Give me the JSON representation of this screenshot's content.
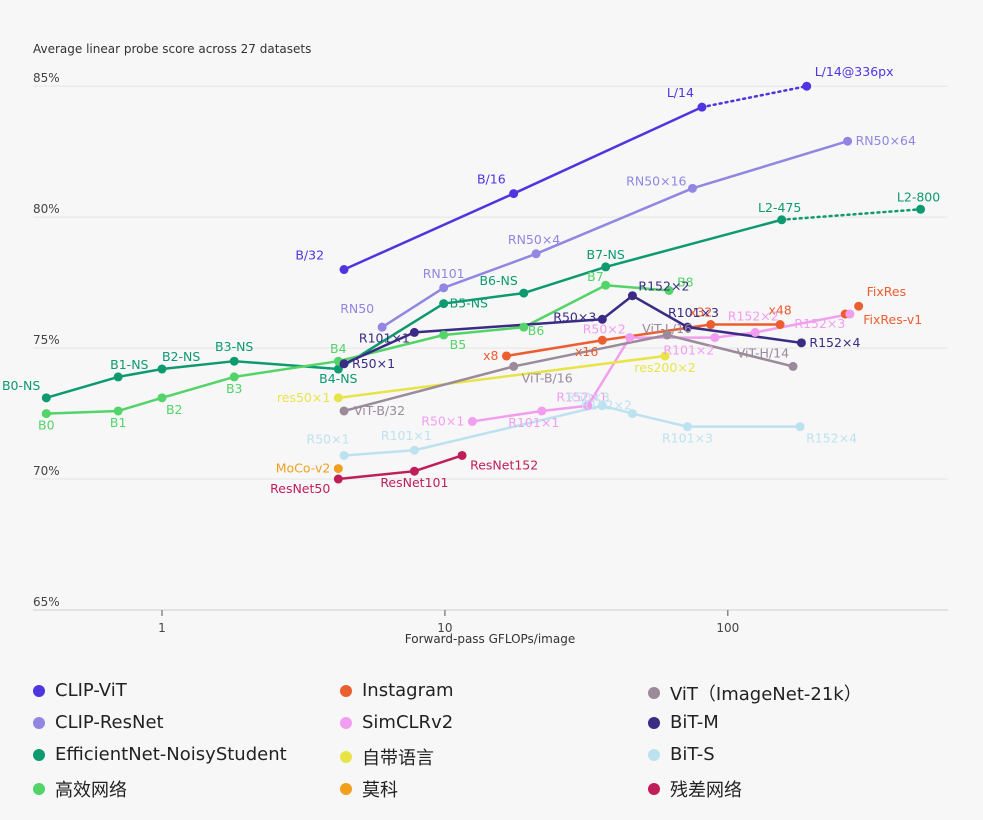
{
  "chart_data": {
    "type": "line",
    "title": "",
    "ylabel": "Average linear probe score across 27 datasets",
    "xlabel": "Forward-pass GFLOPs/image",
    "x_scale": "log",
    "xlim": [
      0.35,
      600
    ],
    "ylim": [
      65,
      86
    ],
    "x_ticks": [
      1,
      10,
      100
    ],
    "x_tick_labels": [
      "1",
      "10",
      "100"
    ],
    "y_ticks": [
      65,
      70,
      75,
      80,
      85
    ],
    "y_tick_labels": [
      "65%",
      "70%",
      "75%",
      "80%",
      "85%"
    ],
    "grid": "horizontal",
    "legend_position": "bottom",
    "series": [
      {
        "name": "CLIP-ViT",
        "color": "#4f35e0",
        "points": [
          {
            "x": 4.4,
            "y": 78.0,
            "label": "B/32"
          },
          {
            "x": 17.5,
            "y": 80.9,
            "label": "B/16"
          },
          {
            "x": 81,
            "y": 84.2,
            "label": "L/14"
          },
          {
            "x": 190,
            "y": 85.0,
            "label": "L/14@336px"
          }
        ],
        "dotted_last": true
      },
      {
        "name": "CLIP-ResNet",
        "color": "#9186e2",
        "points": [
          {
            "x": 6.0,
            "y": 75.8,
            "label": "RN50"
          },
          {
            "x": 9.9,
            "y": 77.3,
            "label": "RN101"
          },
          {
            "x": 21,
            "y": 78.6,
            "label": "RN50×4"
          },
          {
            "x": 75,
            "y": 81.1,
            "label": "RN50×16"
          },
          {
            "x": 265,
            "y": 82.9,
            "label": "RN50×64"
          }
        ]
      },
      {
        "name": "EfficientNet-NoisyStudent",
        "color": "#0c9a6e",
        "points": [
          {
            "x": 0.39,
            "y": 73.1,
            "label": "B0-NS"
          },
          {
            "x": 0.7,
            "y": 73.9,
            "label": "B1-NS"
          },
          {
            "x": 1.0,
            "y": 74.2,
            "label": "B2-NS"
          },
          {
            "x": 1.8,
            "y": 74.5,
            "label": "B3-NS"
          },
          {
            "x": 4.2,
            "y": 74.2,
            "label": "B4-NS"
          },
          {
            "x": 9.9,
            "y": 76.7,
            "label": "B5-NS"
          },
          {
            "x": 19,
            "y": 77.1,
            "label": "B6-NS"
          },
          {
            "x": 37,
            "y": 78.1,
            "label": "B7-NS"
          },
          {
            "x": 155,
            "y": 79.9,
            "label": "L2-475"
          },
          {
            "x": 480,
            "y": 80.3,
            "label": "L2-800"
          }
        ],
        "dotted_last": true
      },
      {
        "name": "高效网络",
        "color": "#52d468",
        "points": [
          {
            "x": 0.39,
            "y": 72.5,
            "label": "B0"
          },
          {
            "x": 0.7,
            "y": 72.6,
            "label": "B1"
          },
          {
            "x": 1.0,
            "y": 73.1,
            "label": "B2"
          },
          {
            "x": 1.8,
            "y": 73.9,
            "label": "B3"
          },
          {
            "x": 4.2,
            "y": 74.5,
            "label": "B4"
          },
          {
            "x": 9.9,
            "y": 75.5,
            "label": "B5"
          },
          {
            "x": 19,
            "y": 75.8,
            "label": "B6"
          },
          {
            "x": 37,
            "y": 77.4,
            "label": "B7"
          },
          {
            "x": 62,
            "y": 77.2,
            "label": "B8"
          }
        ]
      },
      {
        "name": "Instagram",
        "color": "#ec5d30",
        "points": [
          {
            "x": 16.5,
            "y": 74.7,
            "label": "x8"
          },
          {
            "x": 36,
            "y": 75.3,
            "label": "x16"
          },
          {
            "x": 87,
            "y": 75.9,
            "label": "x32"
          },
          {
            "x": 153,
            "y": 75.9,
            "label": "x48"
          }
        ]
      },
      {
        "name": "Instagram",
        "color": "#ec5d30",
        "points": [
          {
            "x": 290,
            "y": 76.6,
            "label": "FixRes"
          }
        ]
      },
      {
        "name": "Instagram",
        "color": "#ec5d30",
        "points": [
          {
            "x": 260,
            "y": 76.3,
            "label": "FixRes-v1"
          }
        ]
      },
      {
        "name": "SimCLRv2",
        "color": "#f29ef0",
        "points": [
          {
            "x": 12.5,
            "y": 72.2,
            "label": "R50×1"
          },
          {
            "x": 22,
            "y": 72.6,
            "label": "R101×1"
          },
          {
            "x": 32,
            "y": 72.8,
            "label": "R152×1"
          },
          {
            "x": 45,
            "y": 75.4,
            "label": "R50×2"
          },
          {
            "x": 90,
            "y": 75.4,
            "label": "R101×2"
          },
          {
            "x": 125,
            "y": 75.6,
            "label": "R152×2"
          },
          {
            "x": 270,
            "y": 76.3,
            "label": "R152×3"
          }
        ]
      },
      {
        "name": "自带语言",
        "color": "#e8e448",
        "points": [
          {
            "x": 4.2,
            "y": 73.1,
            "label": "res50×1"
          },
          {
            "x": 60,
            "y": 74.7,
            "label": "res200×2"
          }
        ]
      },
      {
        "name": "莫科",
        "color": "#f0a01e",
        "points": [
          {
            "x": 4.2,
            "y": 70.4,
            "label": "MoCo-v2"
          }
        ]
      },
      {
        "name": "ViT（ImageNet-21k）",
        "color": "#9a8a9a",
        "points": [
          {
            "x": 4.4,
            "y": 72.6,
            "label": "ViT-B/32"
          },
          {
            "x": 17.5,
            "y": 74.3,
            "label": "ViT-B/16"
          },
          {
            "x": 61,
            "y": 75.5,
            "label": "ViT-L/16"
          },
          {
            "x": 170,
            "y": 74.3,
            "label": "ViT-H/14"
          }
        ]
      },
      {
        "name": "BiT-M",
        "color": "#3b2b84",
        "points": [
          {
            "x": 4.4,
            "y": 74.4,
            "label": "R50×1"
          },
          {
            "x": 7.8,
            "y": 75.6,
            "label": "R101×1"
          },
          {
            "x": 36,
            "y": 76.1,
            "label": "R50×3"
          },
          {
            "x": 46,
            "y": 77.0,
            "label": "R152×2"
          },
          {
            "x": 72,
            "y": 75.8,
            "label": "R101×3"
          },
          {
            "x": 182,
            "y": 75.2,
            "label": "R152×4"
          }
        ]
      },
      {
        "name": "BiT-S",
        "color": "#bde2ef",
        "points": [
          {
            "x": 4.4,
            "y": 70.9,
            "label": "R50×1"
          },
          {
            "x": 7.8,
            "y": 71.1,
            "label": "R101×1"
          },
          {
            "x": 36,
            "y": 72.8,
            "label": "R50×3"
          },
          {
            "x": 46,
            "y": 72.5,
            "label": "R152×2"
          },
          {
            "x": 72,
            "y": 72.0,
            "label": "R101×3"
          },
          {
            "x": 180,
            "y": 72.0,
            "label": "R152×4"
          }
        ]
      },
      {
        "name": "残差网络",
        "color": "#c01e5a",
        "points": [
          {
            "x": 4.2,
            "y": 70.0,
            "label": "ResNet50"
          },
          {
            "x": 7.8,
            "y": 70.3,
            "label": "ResNet101"
          },
          {
            "x": 11.5,
            "y": 70.9,
            "label": "ResNet152"
          }
        ]
      }
    ],
    "legend": [
      {
        "name": "CLIP-ViT",
        "color": "#4f35e0"
      },
      {
        "name": "Instagram",
        "color": "#ec5d30"
      },
      {
        "name": "ViT（ImageNet-21k）",
        "color": "#9a8a9a"
      },
      {
        "name": "CLIP-ResNet",
        "color": "#9186e2"
      },
      {
        "name": "SimCLRv2",
        "color": "#f29ef0"
      },
      {
        "name": "BiT-M",
        "color": "#3b2b84"
      },
      {
        "name": "EfficientNet-NoisyStudent",
        "color": "#0c9a6e"
      },
      {
        "name": "自带语言",
        "color": "#e8e448"
      },
      {
        "name": "BiT-S",
        "color": "#bde2ef"
      },
      {
        "name": "高效网络",
        "color": "#52d468"
      },
      {
        "name": "莫科",
        "color": "#f0a01e"
      },
      {
        "name": "残差网络",
        "color": "#c01e5a"
      }
    ]
  }
}
